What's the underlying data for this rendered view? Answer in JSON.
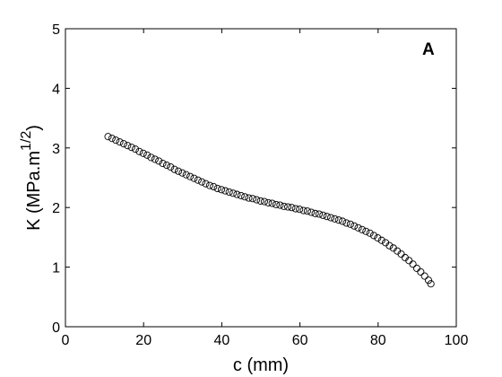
{
  "chart_data": {
    "type": "scatter",
    "title": "",
    "panel_label": "A",
    "xlabel": "c (mm)",
    "ylabel_main": "K (MPa.m",
    "ylabel_sup": "1/2",
    "ylabel_end": ")",
    "xlim": [
      0,
      100
    ],
    "ylim": [
      0,
      5
    ],
    "xticks": [
      0,
      20,
      40,
      60,
      80,
      100
    ],
    "yticks": [
      0,
      1,
      2,
      3,
      4,
      5
    ],
    "grid": false,
    "marker": "open-circle",
    "marker_color": "#000000",
    "series": [
      {
        "x": [
          10.9,
          11.9,
          12.9,
          13.9,
          14.9,
          15.9,
          16.9,
          17.9,
          18.9,
          19.9,
          20.9,
          21.9,
          22.9,
          23.9,
          24.9,
          25.9,
          26.9,
          27.9,
          28.9,
          29.9,
          30.9,
          31.9,
          32.9,
          33.9,
          34.9,
          35.9,
          36.9,
          37.9,
          38.9,
          39.9,
          40.9,
          41.9,
          42.9,
          43.9,
          44.9,
          45.9,
          46.9,
          47.9,
          48.9,
          49.9,
          50.9,
          51.9,
          52.9,
          53.9,
          54.9,
          55.9,
          56.9,
          57.9,
          58.9,
          59.9,
          60.9,
          61.9,
          62.9,
          63.9,
          64.9,
          65.9,
          66.9,
          67.9,
          68.9,
          69.9,
          70.9,
          71.9,
          72.9,
          73.9,
          74.9,
          75.9,
          76.9,
          77.9,
          78.9,
          79.9,
          80.9,
          81.9,
          82.9,
          83.9,
          84.9,
          85.9,
          86.9,
          87.9,
          88.9,
          89.9,
          90.9,
          91.9,
          92.9,
          93.5
        ],
        "y": [
          3.19,
          3.16,
          3.13,
          3.1,
          3.07,
          3.04,
          3.01,
          2.98,
          2.94,
          2.91,
          2.88,
          2.84,
          2.81,
          2.78,
          2.74,
          2.71,
          2.68,
          2.64,
          2.61,
          2.58,
          2.55,
          2.52,
          2.49,
          2.46,
          2.43,
          2.4,
          2.37,
          2.35,
          2.32,
          2.3,
          2.28,
          2.26,
          2.24,
          2.22,
          2.2,
          2.18,
          2.16,
          2.15,
          2.13,
          2.11,
          2.1,
          2.08,
          2.07,
          2.05,
          2.04,
          2.02,
          2.01,
          2.0,
          1.98,
          1.97,
          1.95,
          1.94,
          1.92,
          1.9,
          1.89,
          1.87,
          1.85,
          1.83,
          1.81,
          1.79,
          1.77,
          1.74,
          1.72,
          1.69,
          1.66,
          1.63,
          1.6,
          1.57,
          1.53,
          1.49,
          1.45,
          1.41,
          1.36,
          1.32,
          1.27,
          1.22,
          1.16,
          1.11,
          1.05,
          0.98,
          0.92,
          0.85,
          0.78,
          0.72
        ]
      }
    ]
  }
}
